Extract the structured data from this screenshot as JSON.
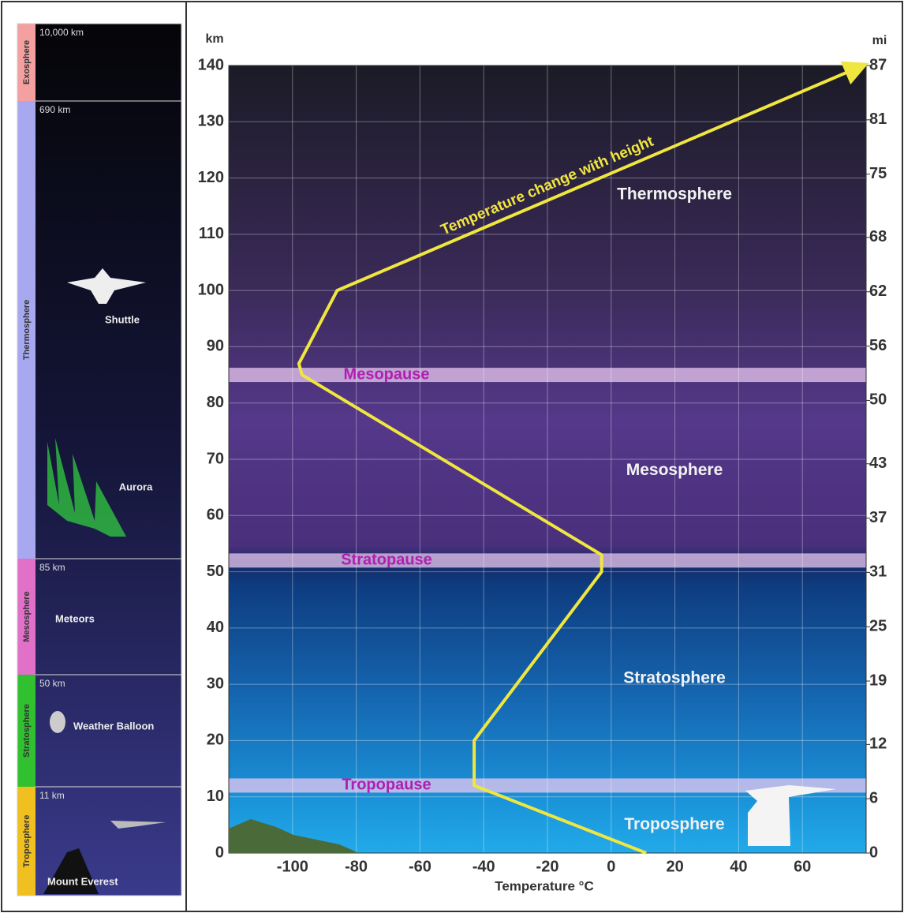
{
  "chart_data": {
    "type": "line",
    "x_label": "Temperature °C",
    "y_label": "km",
    "y2_label": "mi",
    "x": [
      11,
      -43,
      -43,
      -3,
      -3,
      -97,
      -98,
      -86,
      79
    ],
    "series": [
      {
        "name": "Temperature change with height",
        "color": "#f0e640",
        "values": [
          0,
          12,
          20,
          50,
          53,
          85,
          87,
          100,
          140
        ]
      }
    ],
    "xlim": [
      -120,
      80
    ],
    "xticks": [
      -100,
      -80,
      -60,
      -40,
      -20,
      0,
      20,
      40,
      60
    ],
    "ylim": [
      0,
      140
    ],
    "yticks": [
      0,
      10,
      20,
      30,
      40,
      50,
      60,
      70,
      80,
      90,
      100,
      110,
      120,
      130,
      140
    ],
    "y2lim": [
      0,
      87
    ],
    "y2ticks": [
      0,
      6,
      12,
      19,
      25,
      31,
      37,
      43,
      50,
      56,
      62,
      68,
      75,
      81,
      87
    ],
    "grid": true,
    "regions": [
      "Thermosphere",
      "Mesosphere",
      "Stratosphere",
      "Troposphere"
    ],
    "pauses": [
      {
        "name": "Mesopause",
        "value": 85
      },
      {
        "name": "Stratopause",
        "value": 52
      },
      {
        "name": "Tropopause",
        "value": 12
      }
    ]
  },
  "sidebar": {
    "layers": [
      {
        "name": "Exosphere",
        "altitude": "10,000 km"
      },
      {
        "name": "Thermosphere",
        "altitude": "690 km"
      },
      {
        "name": "Mesosphere",
        "altitude": "85 km"
      },
      {
        "name": "Stratosphere",
        "altitude": "50 km"
      },
      {
        "name": "Troposphere",
        "altitude": "11 km"
      }
    ],
    "objects": [
      "Shuttle",
      "Aurora",
      "Meteors",
      "Weather Balloon",
      "Mount Everest"
    ]
  }
}
